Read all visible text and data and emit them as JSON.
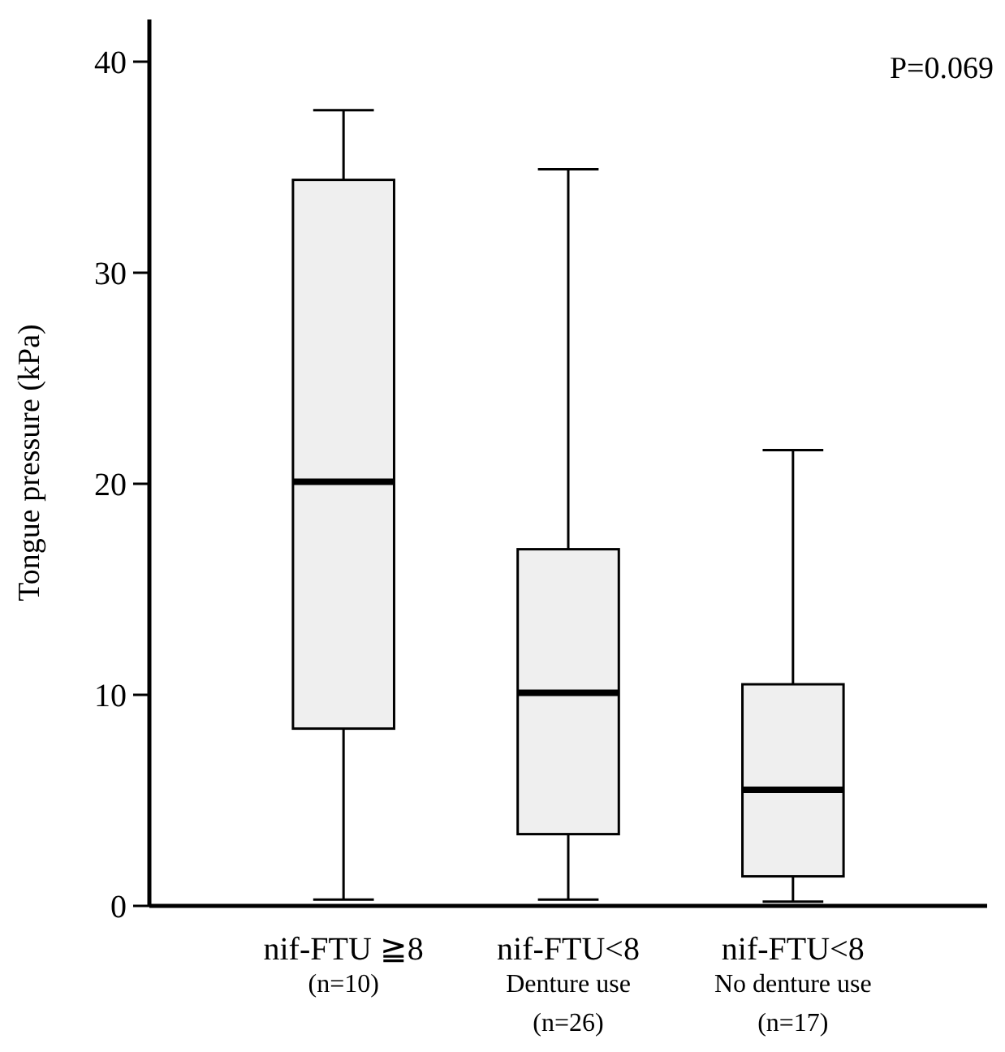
{
  "chart_data": {
    "type": "box",
    "ylabel": "Tongue pressure (kPa)",
    "categories": [
      "nif-FTU ≧8\n(n=10)",
      "nif-FTU<8\nDenture use\n(n=26)",
      "nif-FTU<8\nNo denture use\n(n=17)"
    ],
    "color": "#efefef",
    "boxes": [
      {
        "low": 0.3,
        "q1": 8.4,
        "median": 20.1,
        "q3": 34.4,
        "high": 37.7
      },
      {
        "low": 0.3,
        "q1": 3.4,
        "median": 10.1,
        "q3": 16.9,
        "high": 34.9
      },
      {
        "low": 0.2,
        "q1": 1.4,
        "median": 5.5,
        "q3": 10.5,
        "high": 21.6
      }
    ],
    "ylim": [
      0,
      42
    ],
    "yticks": [
      0,
      10,
      20,
      30,
      40
    ],
    "grid": false,
    "annotations": [
      "P=0.069"
    ]
  }
}
